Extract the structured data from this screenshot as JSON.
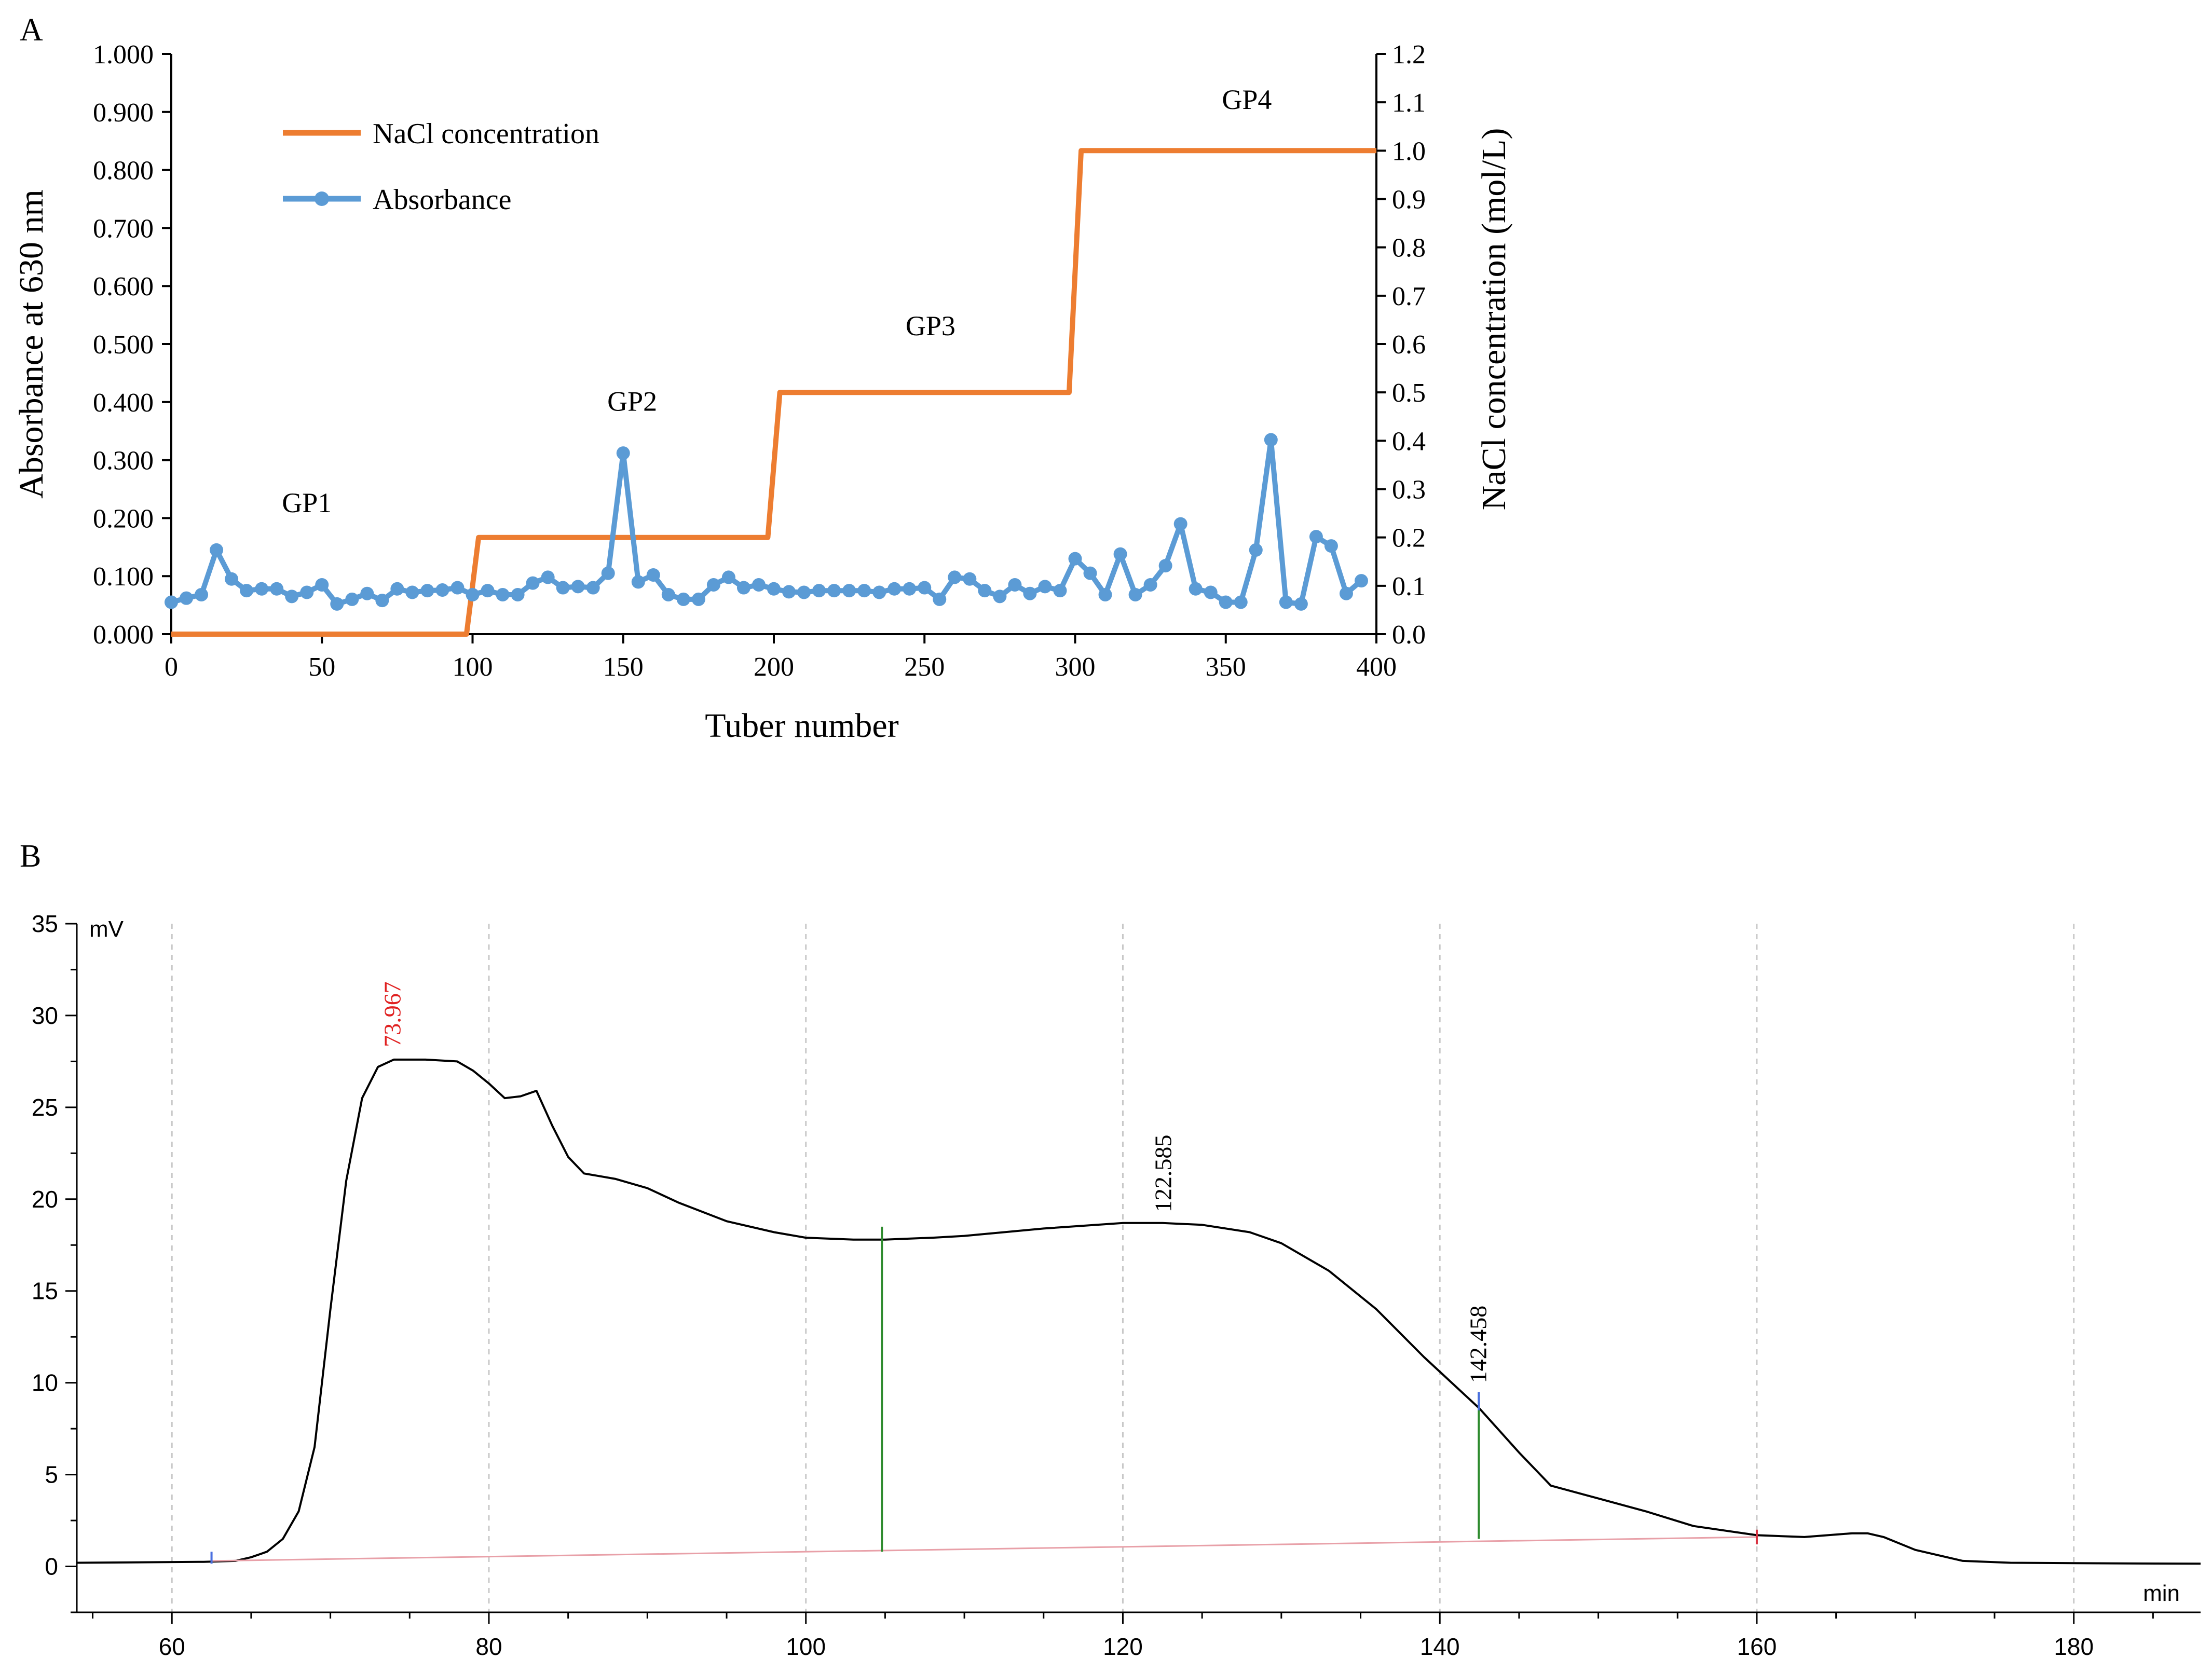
{
  "chart_data": [
    {
      "id": "A",
      "panel_label": "A",
      "type": "line",
      "xlabel": "Tuber number",
      "ylabel_left": "Absorbance at 630 nm",
      "ylabel_right": "NaCl concentration (mol/L)",
      "xlim": [
        0,
        400
      ],
      "ylim_left": [
        0,
        1.0
      ],
      "ylim_right": [
        0,
        1.2
      ],
      "x_ticks": [
        "0",
        "50",
        "100",
        "150",
        "200",
        "250",
        "300",
        "350",
        "400"
      ],
      "y_left_ticks": [
        "0.000",
        "0.100",
        "0.200",
        "0.300",
        "0.400",
        "0.500",
        "0.600",
        "0.700",
        "0.800",
        "0.900",
        "1.000"
      ],
      "y_right_ticks": [
        "0.0",
        "0.1",
        "0.2",
        "0.3",
        "0.4",
        "0.5",
        "0.6",
        "0.7",
        "0.8",
        "0.9",
        "1.0",
        "1.1",
        "1.2"
      ],
      "legend": {
        "position": "top-left",
        "entries": [
          "NaCl concentration",
          "Absorbance"
        ]
      },
      "series": [
        {
          "name": "NaCl concentration",
          "axis": "right",
          "color": "#ED7D31",
          "marker": "none",
          "x": [
            0,
            98,
            102,
            198,
            202,
            298,
            302,
            400
          ],
          "values": [
            0,
            0,
            0.2,
            0.2,
            0.5,
            0.5,
            1.0,
            1.0
          ]
        },
        {
          "name": "Absorbance",
          "axis": "left",
          "color": "#5B9BD5",
          "marker": "circle",
          "x": [
            0,
            5,
            10,
            15,
            20,
            25,
            30,
            35,
            40,
            45,
            50,
            55,
            60,
            65,
            70,
            75,
            80,
            85,
            90,
            95,
            100,
            105,
            110,
            115,
            120,
            125,
            130,
            135,
            140,
            145,
            150,
            155,
            160,
            165,
            170,
            175,
            180,
            185,
            190,
            195,
            200,
            205,
            210,
            215,
            220,
            225,
            230,
            235,
            240,
            245,
            250,
            255,
            260,
            265,
            270,
            275,
            280,
            285,
            290,
            295,
            300,
            305,
            310,
            315,
            320,
            325,
            330,
            335,
            340,
            345,
            350,
            355,
            360,
            365,
            370,
            375,
            380,
            385,
            390,
            395
          ],
          "values": [
            0.055,
            0.062,
            0.068,
            0.145,
            0.095,
            0.075,
            0.078,
            0.078,
            0.065,
            0.072,
            0.085,
            0.052,
            0.06,
            0.07,
            0.058,
            0.078,
            0.072,
            0.075,
            0.076,
            0.08,
            0.068,
            0.075,
            0.068,
            0.068,
            0.088,
            0.098,
            0.08,
            0.082,
            0.08,
            0.105,
            0.312,
            0.09,
            0.102,
            0.068,
            0.06,
            0.06,
            0.085,
            0.098,
            0.08,
            0.085,
            0.078,
            0.073,
            0.072,
            0.075,
            0.075,
            0.075,
            0.075,
            0.072,
            0.078,
            0.078,
            0.08,
            0.06,
            0.098,
            0.095,
            0.075,
            0.065,
            0.085,
            0.07,
            0.082,
            0.075,
            0.13,
            0.105,
            0.068,
            0.138,
            0.068,
            0.085,
            0.118,
            0.19,
            0.078,
            0.072,
            0.055,
            0.055,
            0.145,
            0.335,
            0.055,
            0.052,
            0.168,
            0.152,
            0.07,
            0.092
          ]
        }
      ],
      "annotations": [
        {
          "text": "GP1",
          "x": 45,
          "y": 0.21
        },
        {
          "text": "GP2",
          "x": 153,
          "y": 0.385
        },
        {
          "text": "GP3",
          "x": 252,
          "y": 0.515
        },
        {
          "text": "GP4",
          "x": 357,
          "y": 0.905
        }
      ]
    },
    {
      "id": "B",
      "panel_label": "B",
      "type": "line",
      "xlabel": "min",
      "ylabel": "mV",
      "xlim": [
        54,
        188
      ],
      "ylim": [
        -2.5,
        35
      ],
      "x_ticks": [
        "60",
        "80",
        "100",
        "120",
        "140",
        "160",
        "180"
      ],
      "y_ticks": [
        "0",
        "5",
        "10",
        "15",
        "20",
        "25",
        "30",
        "35"
      ],
      "grid": "vertical-dashed",
      "series": [
        {
          "name": "Signal",
          "color": "#000000",
          "x": [
            54,
            62,
            64,
            65,
            66,
            67,
            68,
            69,
            70,
            71,
            72,
            73,
            74,
            76,
            78,
            79,
            80,
            81,
            82,
            83,
            84,
            85,
            86,
            88,
            90,
            92,
            95,
            98,
            100,
            103,
            105,
            108,
            110,
            115,
            120,
            122.5,
            125,
            128,
            130,
            133,
            136,
            139,
            142.5,
            145,
            147,
            150,
            153,
            156,
            160,
            163,
            166,
            167,
            168,
            170,
            173,
            176,
            180,
            184,
            188
          ],
          "values": [
            0.2,
            0.25,
            0.3,
            0.5,
            0.8,
            1.5,
            3.0,
            6.5,
            14.0,
            21.0,
            25.5,
            27.2,
            27.6,
            27.6,
            27.5,
            27.0,
            26.3,
            25.5,
            25.6,
            25.9,
            24.0,
            22.3,
            21.4,
            21.1,
            20.6,
            19.8,
            18.8,
            18.2,
            17.9,
            17.8,
            17.8,
            17.9,
            18.0,
            18.4,
            18.7,
            18.7,
            18.6,
            18.2,
            17.6,
            16.1,
            14.0,
            11.4,
            8.6,
            6.2,
            4.4,
            3.7,
            3.0,
            2.2,
            1.7,
            1.6,
            1.8,
            1.8,
            1.6,
            0.9,
            0.3,
            0.2,
            0.18,
            0.16,
            0.15
          ]
        },
        {
          "name": "Baseline",
          "color": "#E8A0A8",
          "x": [
            62.5,
            160
          ],
          "values": [
            0.3,
            1.6
          ]
        }
      ],
      "markers": [
        {
          "x": 62.5,
          "y_from": 0.15,
          "y_to": 0.8,
          "color": "#4A6FE0"
        },
        {
          "x": 104.8,
          "y_from": 0.8,
          "y_to": 18.5,
          "color": "#2E8B2E"
        },
        {
          "x": 142.458,
          "y_from": 1.5,
          "y_to": 9.5,
          "color": "#2E8B2E"
        },
        {
          "x": 142.458,
          "y_from": 8.5,
          "y_to": 9.5,
          "color": "#4A6FE0"
        },
        {
          "x": 160,
          "y_from": 1.2,
          "y_to": 2.0,
          "color": "#D83040"
        }
      ],
      "peak_labels": [
        {
          "text": "73.967",
          "x": 73.967,
          "y": 28.0,
          "color": "#E02020"
        },
        {
          "text": "122.585",
          "x": 122.585,
          "y": 19.0,
          "color": "#000000"
        },
        {
          "text": "142.458",
          "x": 142.458,
          "y": 9.7,
          "color": "#000000"
        }
      ]
    }
  ]
}
